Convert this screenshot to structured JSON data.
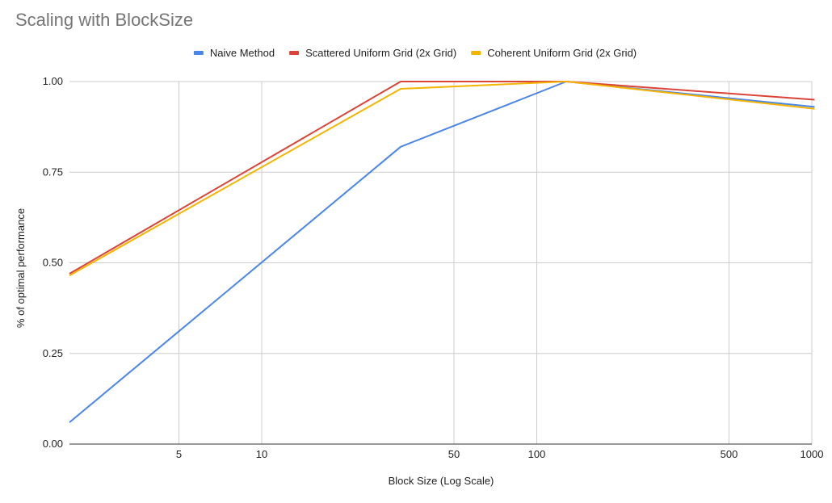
{
  "chart_data": {
    "type": "line",
    "title": "Scaling with BlockSize",
    "xlabel": "Block Size (Log Scale)",
    "ylabel": "% of optimal performance",
    "x_scale": "log",
    "xlim": [
      2,
      1000
    ],
    "ylim": [
      0,
      1
    ],
    "x_ticks": [
      5,
      10,
      50,
      100,
      500,
      1000
    ],
    "y_ticks": [
      0,
      0.25,
      0.5,
      0.75,
      1
    ],
    "y_tick_labels": [
      "0.00",
      "0.25",
      "0.50",
      "0.75",
      "1.00"
    ],
    "x_tick_labels": [
      "5",
      "10",
      "50",
      "100",
      "500",
      "1000"
    ],
    "grid": true,
    "legend_position": "top",
    "x": [
      2,
      32,
      128,
      1024
    ],
    "series": [
      {
        "name": "Naive Method",
        "color": "#4a86e8",
        "values": [
          0.06,
          0.82,
          1.0,
          0.93
        ]
      },
      {
        "name": "Scattered Uniform Grid (2x Grid)",
        "color": "#db4437",
        "values": [
          0.47,
          1.0,
          1.0,
          0.95
        ]
      },
      {
        "name": "Coherent Uniform Grid (2x Grid)",
        "color": "#f4b400",
        "values": [
          0.465,
          0.98,
          1.0,
          0.925
        ]
      }
    ]
  }
}
